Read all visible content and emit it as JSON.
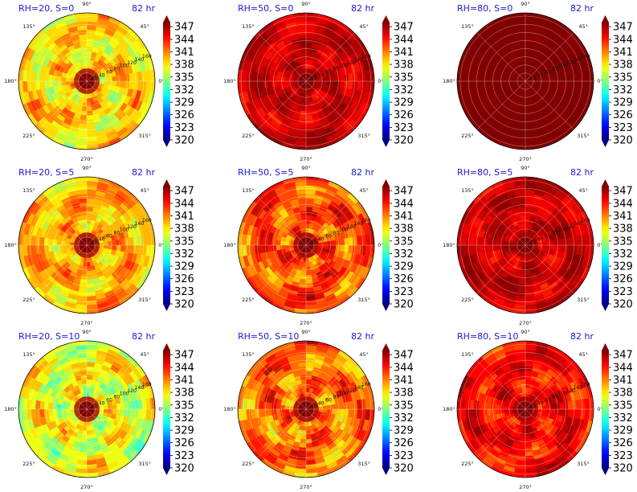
{
  "chart_data": {
    "type": "polar-contour-grid",
    "layout": {
      "rows": 3,
      "cols": 3
    },
    "colormap": "jet",
    "colorbar_ticks": [
      "347",
      "344",
      "341",
      "338",
      "335",
      "332",
      "329",
      "326",
      "323",
      "320"
    ],
    "vmin": 320,
    "vmax": 348,
    "angle_labels": [
      "90°",
      "45°",
      "0°",
      "315°",
      "270°",
      "225°",
      "180°",
      "135°"
    ],
    "radial_ticks": [
      "20",
      "40",
      "60",
      "80",
      "100",
      "120",
      "140",
      "160"
    ],
    "panels": [
      {
        "title": "RH=20, S=0",
        "time": "82 hr",
        "mean_value": 338.5,
        "spread": 4.5,
        "show_rticks": true
      },
      {
        "title": "RH=50, S=0",
        "time": "82 hr",
        "mean_value": 346.0,
        "spread": 2.5,
        "show_rticks": true
      },
      {
        "title": "RH=80, S=0",
        "time": "82 hr",
        "mean_value": 348.0,
        "spread": 0.3,
        "show_rticks": true
      },
      {
        "title": "RH=20, S=5",
        "time": "82 hr",
        "mean_value": 339.5,
        "spread": 4.0,
        "show_rticks": true
      },
      {
        "title": "RH=50, S=5",
        "time": "82 hr",
        "mean_value": 342.5,
        "spread": 4.5,
        "show_rticks": true
      },
      {
        "title": "RH=80, S=5",
        "time": "82 hr",
        "mean_value": 346.0,
        "spread": 2.5,
        "show_rticks": true
      },
      {
        "title": "RH=20, S=10",
        "time": "82 hr",
        "mean_value": 337.0,
        "spread": 5.0,
        "show_rticks": true
      },
      {
        "title": "RH=50, S=10",
        "time": "82 hr",
        "mean_value": 341.5,
        "spread": 5.0,
        "show_rticks": true
      },
      {
        "title": "RH=80, S=10",
        "time": "82 hr",
        "mean_value": 344.5,
        "spread": 3.5,
        "show_rticks": true
      }
    ]
  }
}
